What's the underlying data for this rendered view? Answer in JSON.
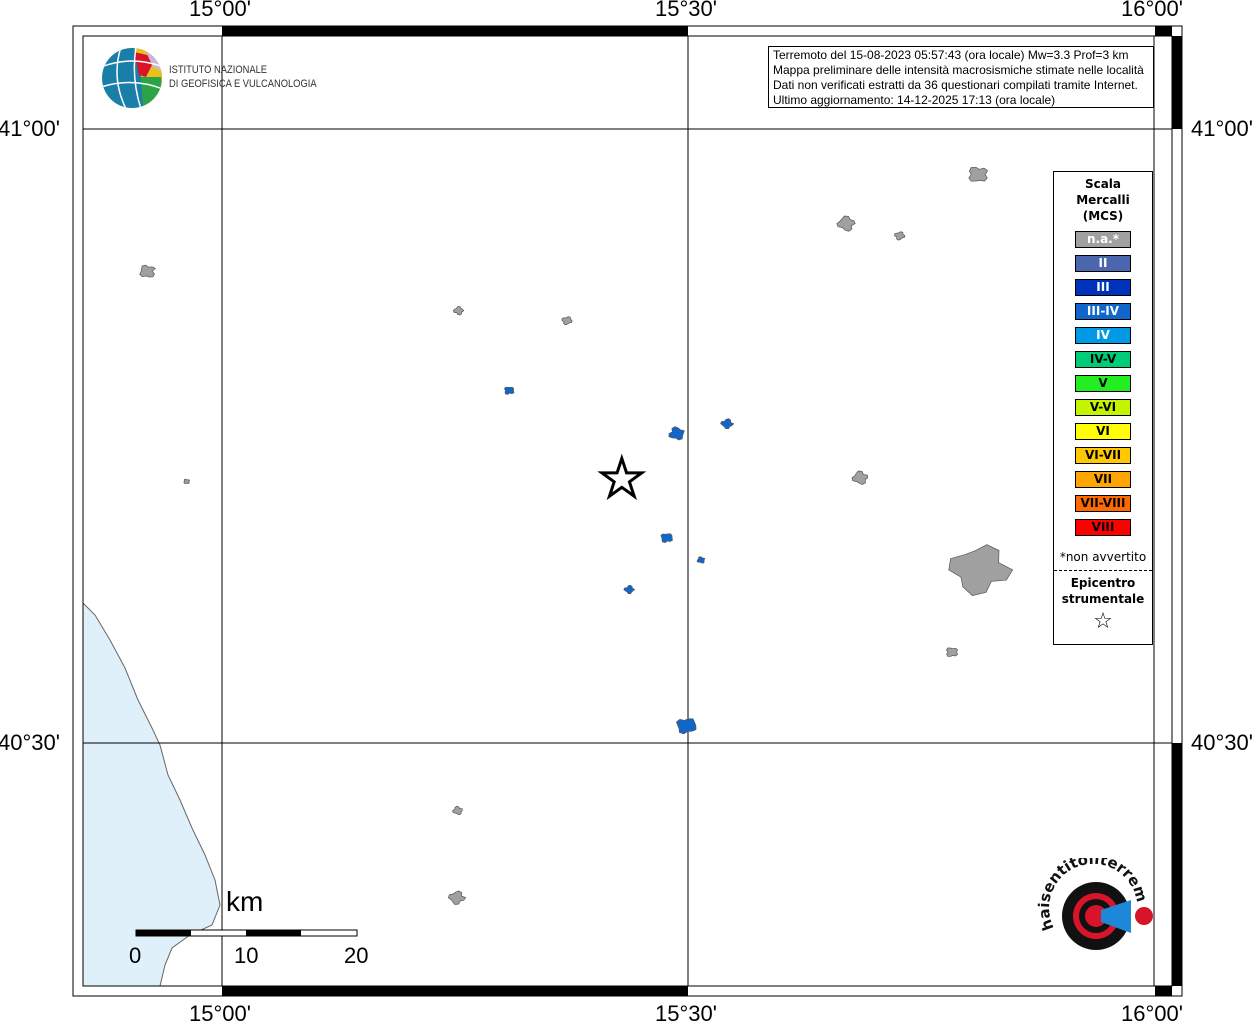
{
  "map": {
    "lon_ticks": [
      {
        "value": 15.0,
        "label": "15°00'"
      },
      {
        "value": 15.5,
        "label": "15°30'"
      },
      {
        "value": 16.0,
        "label": "16°00'"
      }
    ],
    "lat_ticks": [
      {
        "value": 41.0,
        "label": "41°00'"
      },
      {
        "value": 40.5,
        "label": "40°30'"
      }
    ],
    "sea_color": "#dff0fb",
    "epicenter": {
      "lon": 15.429,
      "lat": 40.716,
      "icon": "star-icon"
    },
    "localities": [
      {
        "lon": 14.92,
        "lat": 40.884,
        "intensity": "n.a.*"
      },
      {
        "lon": 15.254,
        "lat": 40.852,
        "intensity": "n.a.*"
      },
      {
        "lon": 15.37,
        "lat": 40.844,
        "intensity": "n.a.*"
      },
      {
        "lon": 14.962,
        "lat": 40.713,
        "intensity": "n.a.*"
      },
      {
        "lon": 15.67,
        "lat": 40.923,
        "intensity": "n.a.*"
      },
      {
        "lon": 15.727,
        "lat": 40.913,
        "intensity": "n.a.*"
      },
      {
        "lon": 15.811,
        "lat": 40.963,
        "intensity": "n.a.*"
      },
      {
        "lon": 15.685,
        "lat": 40.716,
        "intensity": "n.a.*"
      },
      {
        "lon": 15.813,
        "lat": 40.641,
        "intensity": "n.a.*"
      },
      {
        "lon": 15.783,
        "lat": 40.574,
        "intensity": "n.a.*"
      },
      {
        "lon": 15.253,
        "lat": 40.445,
        "intensity": "n.a.*"
      },
      {
        "lon": 15.252,
        "lat": 40.374,
        "intensity": "n.a.*"
      },
      {
        "lon": 15.308,
        "lat": 40.787,
        "intensity": "III-IV"
      },
      {
        "lon": 15.488,
        "lat": 40.752,
        "intensity": "III-IV"
      },
      {
        "lon": 15.542,
        "lat": 40.76,
        "intensity": "III-IV"
      },
      {
        "lon": 15.477,
        "lat": 40.667,
        "intensity": "III-IV"
      },
      {
        "lon": 15.514,
        "lat": 40.649,
        "intensity": "III-IV"
      },
      {
        "lon": 15.437,
        "lat": 40.625,
        "intensity": "III-IV"
      },
      {
        "lon": 15.498,
        "lat": 40.514,
        "intensity": "III-IV"
      }
    ]
  },
  "info": {
    "lines": [
      "Terremoto del 15-08-2023 05:57:43 (ora locale) Mw=3.3 Prof=3 km",
      "Mappa preliminare delle intensità macrosismiche stimate nelle località",
      "Dati non verificati estratti da 36 questionari compilati tramite Internet.",
      "Ultimo aggiornamento: 14-12-2025 17:13 (ora locale)"
    ]
  },
  "logo_ingv": {
    "line1": "ISTITUTO NAZIONALE",
    "line2": "DI GEOFISICA E VULCANOLOGIA"
  },
  "logo_hsit": {
    "text": "www.haisentitoilterremoto.it"
  },
  "legend": {
    "title": [
      "Scala",
      "Mercalli",
      "(MCS)"
    ],
    "classes": [
      {
        "label": "n.a.*",
        "color": "#a0a0a0",
        "text": "#ffffff"
      },
      {
        "label": "II",
        "color": "#4a66ad",
        "text": "#ffffff"
      },
      {
        "label": "III",
        "color": "#0033bb",
        "text": "#ffffff"
      },
      {
        "label": "III-IV",
        "color": "#1166cc",
        "text": "#ffffff"
      },
      {
        "label": "IV",
        "color": "#0099e6",
        "text": "#ffffff"
      },
      {
        "label": "IV-V",
        "color": "#00cc77",
        "text": "#000000"
      },
      {
        "label": "V",
        "color": "#22ee22",
        "text": "#000000"
      },
      {
        "label": "V-VI",
        "color": "#c4f500",
        "text": "#000000"
      },
      {
        "label": "VI",
        "color": "#ffff00",
        "text": "#000000"
      },
      {
        "label": "VI-VII",
        "color": "#ffc800",
        "text": "#000000"
      },
      {
        "label": "VII",
        "color": "#ffa500",
        "text": "#000000"
      },
      {
        "label": "VII-VIII",
        "color": "#ff6a00",
        "text": "#000000"
      },
      {
        "label": "VIII",
        "color": "#ff0000",
        "text": "#000000"
      }
    ],
    "note": "*non avvertito",
    "epicenter_label": [
      "Epicentro",
      "strumentale"
    ]
  },
  "scalebar": {
    "unit": "km",
    "labels": [
      "0",
      "10",
      "20"
    ],
    "max_km": 20
  }
}
